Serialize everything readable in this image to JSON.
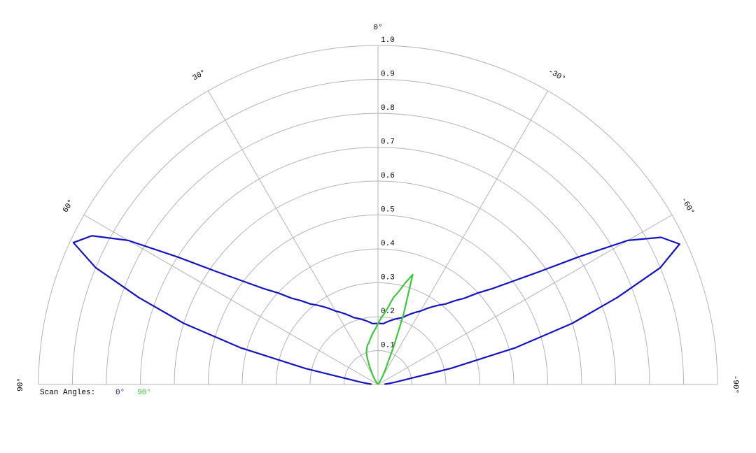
{
  "chart_data": {
    "type": "polar",
    "legend_title": "Scan Angles:",
    "x": [
      -90,
      -87.5,
      -85,
      -82.5,
      -80,
      -77.5,
      -75,
      -72.5,
      -70,
      -67.5,
      -65,
      -62.5,
      -60,
      -57.5,
      -55,
      -52.5,
      -50,
      -47.5,
      -45,
      -42.5,
      -40,
      -37.5,
      -35,
      -32.5,
      -30,
      -27.5,
      -25,
      -22.5,
      -20,
      -17.5,
      -15,
      -12.5,
      -10,
      -7.5,
      -5,
      -2.5,
      0,
      2.5,
      5,
      7.5,
      10,
      12.5,
      15,
      17.5,
      20,
      22.5,
      25,
      27.5,
      30,
      32.5,
      35,
      37.5,
      40,
      42.5,
      45,
      47.5,
      50,
      52.5,
      55,
      57.5,
      60,
      62.5,
      65,
      67.5,
      70,
      72.5,
      75,
      77.5,
      80,
      82.5,
      85,
      87.5,
      90
    ],
    "series": [
      {
        "name": "0°",
        "color": "#1414c0",
        "values": [
          0.02,
          0.02,
          0.03,
          0.05,
          0.08,
          0.22,
          0.42,
          0.6,
          0.75,
          0.9,
          0.98,
          0.94,
          0.85,
          0.7,
          0.58,
          0.5,
          0.44,
          0.4,
          0.36,
          0.335,
          0.31,
          0.295,
          0.28,
          0.265,
          0.25,
          0.24,
          0.23,
          0.22,
          0.21,
          0.205,
          0.2,
          0.195,
          0.19,
          0.185,
          0.18,
          0.18,
          0.18,
          0.18,
          0.18,
          0.185,
          0.19,
          0.195,
          0.2,
          0.205,
          0.21,
          0.22,
          0.23,
          0.24,
          0.25,
          0.265,
          0.28,
          0.295,
          0.31,
          0.335,
          0.36,
          0.4,
          0.44,
          0.5,
          0.58,
          0.7,
          0.85,
          0.95,
          0.99,
          0.9,
          0.75,
          0.6,
          0.42,
          0.22,
          0.08,
          0.05,
          0.03,
          0.02,
          0.02
        ]
      },
      {
        "name": "90°",
        "color": "#3cc83c",
        "values": [
          0,
          0,
          0,
          0,
          0,
          0,
          0,
          0,
          0,
          0,
          0,
          0,
          0,
          0,
          0,
          0,
          0,
          0,
          0,
          0,
          0,
          0,
          0,
          0.01,
          0.02,
          0.04,
          0.06,
          0.12,
          0.22,
          0.34,
          0.31,
          0.28,
          0.26,
          0.23,
          0.21,
          0.195,
          0.18,
          0.165,
          0.155,
          0.145,
          0.135,
          0.125,
          0.12,
          0.11,
          0.1,
          0.08,
          0.06,
          0.04,
          0.03,
          0.02,
          0.01,
          0,
          0,
          0,
          0,
          0,
          0,
          0,
          0,
          0,
          0,
          0,
          0,
          0,
          0,
          0,
          0,
          0,
          0,
          0,
          0,
          0,
          0
        ]
      }
    ],
    "xlim": [
      -90,
      90
    ],
    "xticks": [
      {
        "value": 90,
        "label": "90°"
      },
      {
        "value": 60,
        "label": "60°"
      },
      {
        "value": 30,
        "label": "30°"
      },
      {
        "value": 0,
        "label": "0°"
      },
      {
        "value": -30,
        "label": "-30°"
      },
      {
        "value": -60,
        "label": "-60°"
      },
      {
        "value": -90,
        "label": "-90°"
      }
    ],
    "ylim": [
      0,
      1
    ],
    "yticks": [
      0.1,
      0.2,
      0.3,
      0.4,
      0.5,
      0.6,
      0.7,
      0.8,
      0.9,
      {
        "value": 1,
        "label": "1.0"
      }
    ],
    "grid": true
  }
}
